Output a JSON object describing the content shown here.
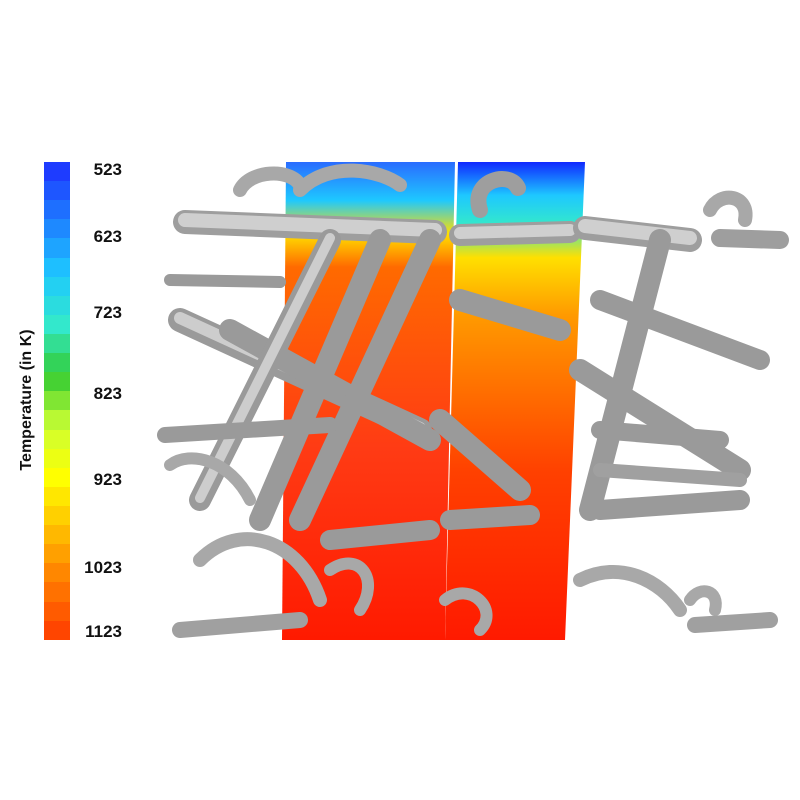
{
  "colorbar": {
    "title": "Temperature (in K)",
    "ticks": [
      "523",
      "623",
      "723",
      "823",
      "923",
      "1023",
      "1123"
    ],
    "colors": [
      "#1e3cff",
      "#1e80ff",
      "#1ec8ff",
      "#33e8cc",
      "#33cc33",
      "#ccff33",
      "#ffff00",
      "#ffc000",
      "#ff7f00",
      "#ff4500"
    ]
  }
}
